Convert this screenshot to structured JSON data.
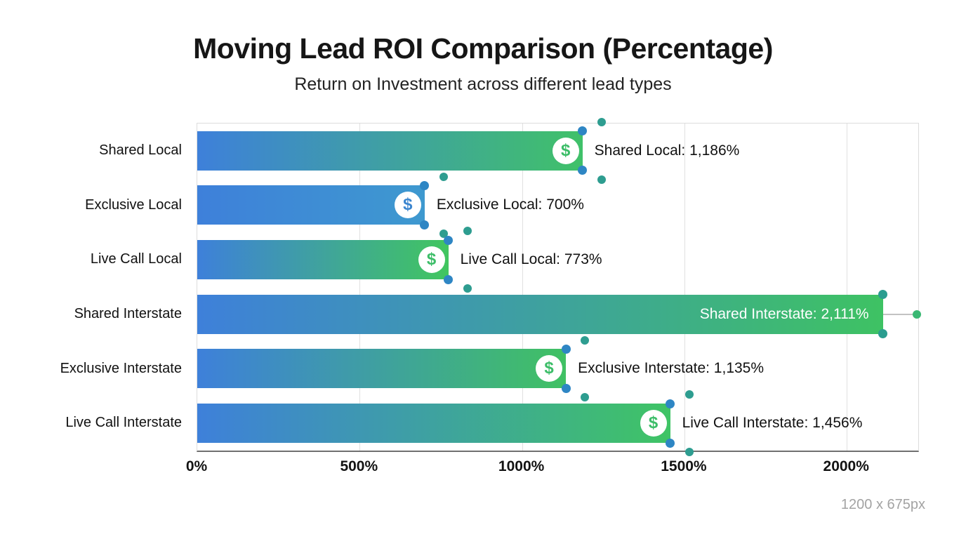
{
  "page": {
    "size_note": "1200 x 675px"
  },
  "chart_data": {
    "type": "bar",
    "orientation": "horizontal",
    "title": "Moving Lead ROI Comparison (Percentage)",
    "subtitle": "Return on Investment across different lead types",
    "xlabel": "",
    "ylabel": "",
    "xlim": [
      0,
      2220
    ],
    "grid": true,
    "legend": null,
    "categories": [
      "Shared Local",
      "Exclusive Local",
      "Live Call Local",
      "Shared Interstate",
      "Exclusive Interstate",
      "Live Call Interstate"
    ],
    "values": [
      1186,
      700,
      773,
      2111,
      1135,
      1456
    ],
    "x_ticks": [
      {
        "value": 0,
        "label": "0%"
      },
      {
        "value": 500,
        "label": "500%"
      },
      {
        "value": 1000,
        "label": "1000%"
      },
      {
        "value": 1500,
        "label": "1500%"
      },
      {
        "value": 2000,
        "label": "2000%"
      }
    ],
    "bars": [
      {
        "category": "Shared Local",
        "value": 1186,
        "label": "Shared Local: 1,186%",
        "label_inside": false,
        "icon": "dollar-icon",
        "icon_glyph": "$",
        "icon_color": "#3cbd68",
        "gradient_start": "#3e80da",
        "gradient_end": "#40c169",
        "corner_dot_color": "#2e86c4",
        "outer_dot_color": "#2e9d90",
        "outer_dots": true,
        "leader_dot": false
      },
      {
        "category": "Exclusive Local",
        "value": 700,
        "label": "Exclusive Local: 700%",
        "label_inside": false,
        "icon": "dollar-icon",
        "icon_glyph": "$",
        "icon_color": "#3c86cf",
        "gradient_start": "#3e80da",
        "gradient_end": "#3e99cf",
        "corner_dot_color": "#2e86c4",
        "outer_dot_color": "#2e9d90",
        "outer_dots": true,
        "leader_dot": false
      },
      {
        "category": "Live Call Local",
        "value": 773,
        "label": "Live Call Local: 773%",
        "label_inside": false,
        "icon": "dollar-icon",
        "icon_glyph": "$",
        "icon_color": "#3cbd68",
        "gradient_start": "#3e80da",
        "gradient_end": "#41c65f",
        "corner_dot_color": "#2e86c4",
        "outer_dot_color": "#2e9d90",
        "outer_dots": true,
        "leader_dot": false
      },
      {
        "category": "Shared Interstate",
        "value": 2111,
        "label": "Shared Interstate: 2,111%",
        "label_inside": true,
        "icon": null,
        "icon_glyph": "",
        "icon_color": "",
        "gradient_start": "#3e80da",
        "gradient_end": "#3ec263",
        "corner_dot_color": "#2a9d8f",
        "outer_dot_color": "#2e9d90",
        "outer_dots": false,
        "leader_dot": true,
        "leader_dot_color": "#3ab873"
      },
      {
        "category": "Exclusive Interstate",
        "value": 1135,
        "label": "Exclusive Interstate: 1,135%",
        "label_inside": false,
        "icon": "dollar-icon",
        "icon_glyph": "$",
        "icon_color": "#3cbd68",
        "gradient_start": "#3e80da",
        "gradient_end": "#40c163",
        "corner_dot_color": "#2e86c4",
        "outer_dot_color": "#2e9d90",
        "outer_dots": true,
        "leader_dot": false
      },
      {
        "category": "Live Call Interstate",
        "value": 1456,
        "label": "Live Call Interstate: 1,456%",
        "label_inside": false,
        "icon": "dollar-icon",
        "icon_glyph": "$",
        "icon_color": "#3cbd68",
        "gradient_start": "#3e80da",
        "gradient_end": "#3fc465",
        "corner_dot_color": "#2e86c4",
        "outer_dot_color": "#2e9d90",
        "outer_dots": true,
        "leader_dot": false
      }
    ]
  },
  "colors": {
    "grid": "#e0e0e0",
    "plot_border": "#dcdcdc",
    "axis_line": "#707070",
    "text": "#111111",
    "subtitle_text": "#222222",
    "size_note_text": "#a3a3a3",
    "bar_gradient_start": "#3e80da"
  }
}
